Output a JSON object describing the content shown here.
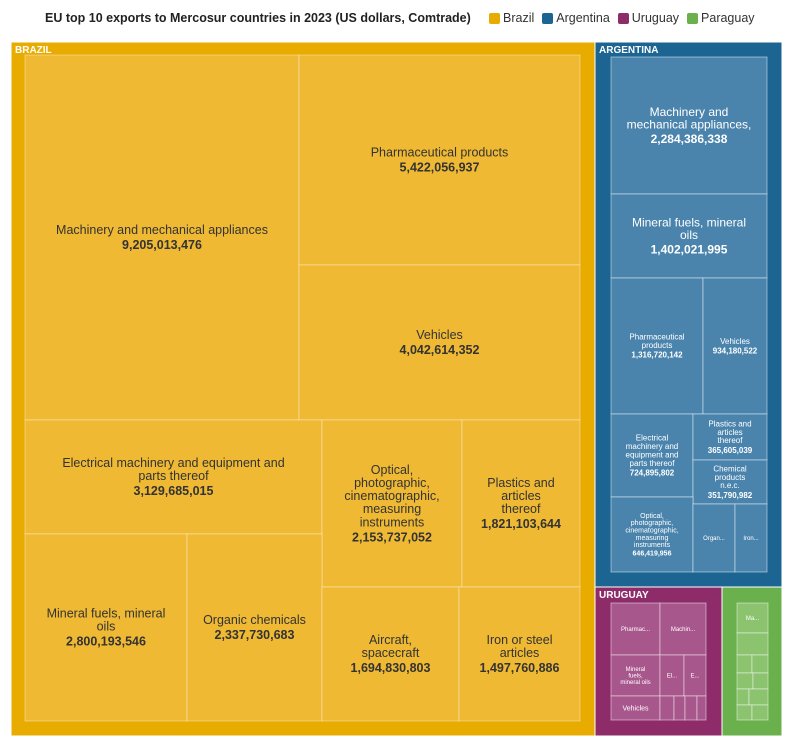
{
  "title": "EU top 10 exports to Mercosur countries in 2023 (US dollars, Comtrade)",
  "legend": [
    {
      "label": "Brazil",
      "color": "#e8ac00"
    },
    {
      "label": "Argentina",
      "color": "#1c6593"
    },
    {
      "label": "Uruguay",
      "color": "#8e2c6a"
    },
    {
      "label": "Paraguay",
      "color": "#6ab04c"
    }
  ],
  "chart_data": {
    "type": "treemap",
    "title": "EU top 10 exports to Mercosur countries in 2023 (US dollars, Comtrade)",
    "groups": [
      {
        "name": "BRAZIL",
        "legend": "Brazil",
        "color": "#e8ac00",
        "tile_color": "#efb933",
        "items": [
          {
            "label": "Machinery and mechanical appliances",
            "value": 9205013476,
            "value_text": "9,205,013,476"
          },
          {
            "label": "Pharmaceutical products",
            "value": 5422056937,
            "value_text": "5,422,056,937"
          },
          {
            "label": "Vehicles",
            "value": 4042614352,
            "value_text": "4,042,614,352"
          },
          {
            "label": "Electrical machinery and equipment and parts thereof",
            "value": 3129685015,
            "value_text": "3,129,685,015"
          },
          {
            "label": "Optical, photographic, cinematographic, measuring instruments",
            "value": 2153737052,
            "value_text": "2,153,737,052"
          },
          {
            "label": "Plastics and articles thereof",
            "value": 1821103644,
            "value_text": "1,821,103,644"
          },
          {
            "label": "Mineral fuels, mineral oils",
            "value": 2800193546,
            "value_text": "2,800,193,546"
          },
          {
            "label": "Organic chemicals",
            "value": 2337730683,
            "value_text": "2,337,730,683"
          },
          {
            "label": "Aircraft, spacecraft",
            "value": 1694830803,
            "value_text": "1,694,830,803"
          },
          {
            "label": "Iron or steel articles",
            "value": 1497760886,
            "value_text": "1,497,760,886"
          }
        ]
      },
      {
        "name": "ARGENTINA",
        "legend": "Argentina",
        "color": "#1c6593",
        "tile_color": "#4a84ad",
        "items": [
          {
            "label": "Machinery and mechanical appliances,",
            "value": 2284386338,
            "value_text": "2,284,386,338"
          },
          {
            "label": "Mineral fuels, mineral oils",
            "value": 1402021995,
            "value_text": "1,402,021,995"
          },
          {
            "label": "Pharmaceutical products",
            "value": 1316720142,
            "value_text": "1,316,720,142"
          },
          {
            "label": "Vehicles",
            "value": 934180522,
            "value_text": "934,180,522"
          },
          {
            "label": "Electrical machinery and equipment and parts thereof",
            "value": 724895802,
            "value_text": "724,895,802"
          },
          {
            "label": "Plastics and articles thereof",
            "value": 365605039,
            "value_text": "365,605,039"
          },
          {
            "label": "Chemical products n.e.c.",
            "value": 351790982,
            "value_text": "351,790,982"
          },
          {
            "label": "Optical, photographic, cinematographic, measuring instruments",
            "value": 646419956,
            "value_text": "646,419,956"
          },
          {
            "label": "Organ...",
            "value": null,
            "value_text": ""
          },
          {
            "label": "Iron...",
            "value": null,
            "value_text": ""
          }
        ]
      },
      {
        "name": "URUGUAY",
        "legend": "Uruguay",
        "color": "#8e2c6a",
        "tile_color": "#a8578d",
        "items": [
          {
            "label": "Pharmac...",
            "value": null,
            "value_text": ""
          },
          {
            "label": "Machin...",
            "value": null,
            "value_text": ""
          },
          {
            "label": "Mineral fuels, mineral oils",
            "value": null,
            "value_text": ""
          },
          {
            "label": "El...",
            "value": null,
            "value_text": ""
          },
          {
            "label": "E...",
            "value": null,
            "value_text": ""
          },
          {
            "label": "Vehicles",
            "value": null,
            "value_text": ""
          },
          {
            "label": "",
            "value": null,
            "value_text": ""
          },
          {
            "label": "",
            "value": null,
            "value_text": ""
          },
          {
            "label": "",
            "value": null,
            "value_text": ""
          },
          {
            "label": "",
            "value": null,
            "value_text": ""
          }
        ]
      },
      {
        "name": "",
        "legend": "Paraguay",
        "color": "#6ab04c",
        "tile_color": "#8cc36f",
        "items": [
          {
            "label": "Ma...",
            "value": null,
            "value_text": ""
          },
          {
            "label": "",
            "value": null,
            "value_text": ""
          },
          {
            "label": "",
            "value": null,
            "value_text": ""
          },
          {
            "label": "",
            "value": null,
            "value_text": ""
          },
          {
            "label": "",
            "value": null,
            "value_text": ""
          },
          {
            "label": "",
            "value": null,
            "value_text": ""
          },
          {
            "label": "",
            "value": null,
            "value_text": ""
          },
          {
            "label": "",
            "value": null,
            "value_text": ""
          },
          {
            "label": "",
            "value": null,
            "value_text": ""
          },
          {
            "label": "",
            "value": null,
            "value_text": ""
          }
        ]
      }
    ]
  }
}
